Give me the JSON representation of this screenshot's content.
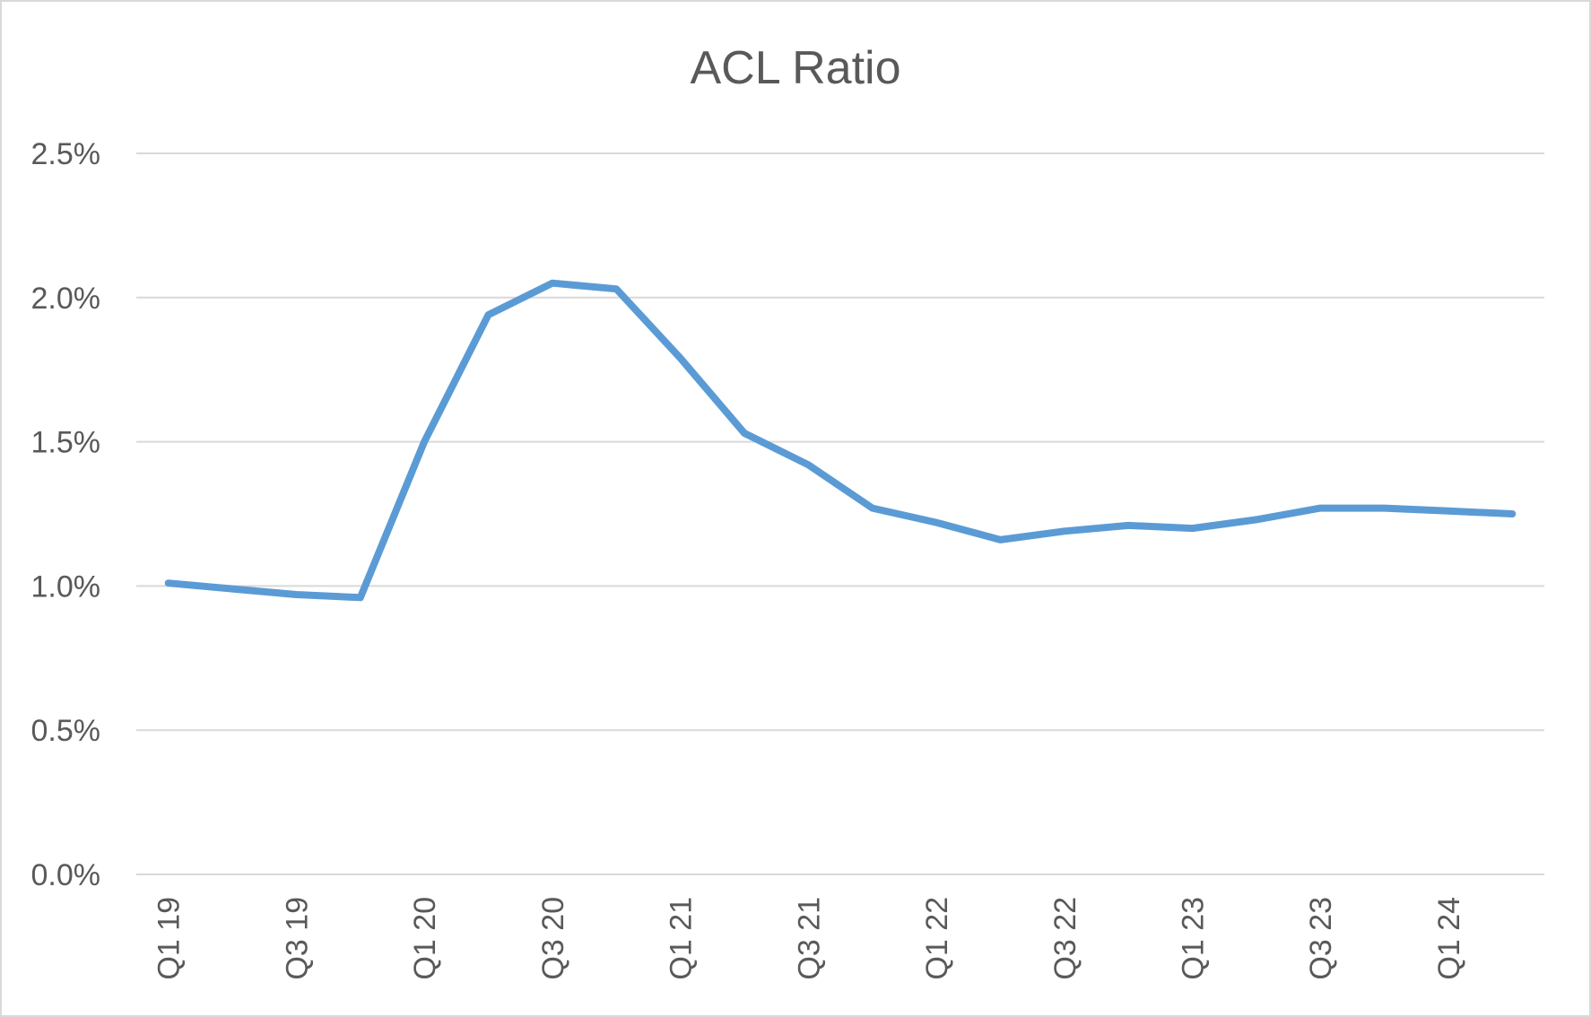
{
  "chart_data": {
    "type": "line",
    "title": "ACL Ratio",
    "xlabel": "",
    "ylabel": "",
    "categories": [
      "Q1 19",
      "Q2 19",
      "Q3 19",
      "Q4 19",
      "Q1 20",
      "Q2 20",
      "Q3 20",
      "Q4 20",
      "Q1 21",
      "Q2 21",
      "Q3 21",
      "Q4 21",
      "Q1 22",
      "Q2 22",
      "Q3 22",
      "Q4 22",
      "Q1 23",
      "Q2 23",
      "Q3 23",
      "Q4 23",
      "Q1 24",
      "Q2 24"
    ],
    "x_tick_labels": [
      "Q1 19",
      "Q3 19",
      "Q1 20",
      "Q3 20",
      "Q1 21",
      "Q3 21",
      "Q1 22",
      "Q3 22",
      "Q1 23",
      "Q3 23",
      "Q1 24"
    ],
    "series": [
      {
        "values": [
          1.01,
          0.99,
          0.97,
          0.96,
          1.5,
          1.94,
          2.05,
          2.03,
          1.79,
          1.53,
          1.42,
          1.27,
          1.22,
          1.16,
          1.19,
          1.21,
          1.2,
          1.23,
          1.27,
          1.27,
          1.26,
          1.25
        ],
        "color": "#5b9bd5"
      }
    ],
    "y_tick_labels": [
      "0.0%",
      "0.5%",
      "1.0%",
      "1.5%",
      "2.0%",
      "2.5%"
    ],
    "y_ticks": [
      0,
      0.5,
      1.0,
      1.5,
      2.0,
      2.5
    ],
    "ylim": [
      0,
      2.5
    ],
    "grid": true,
    "legend": "none"
  }
}
